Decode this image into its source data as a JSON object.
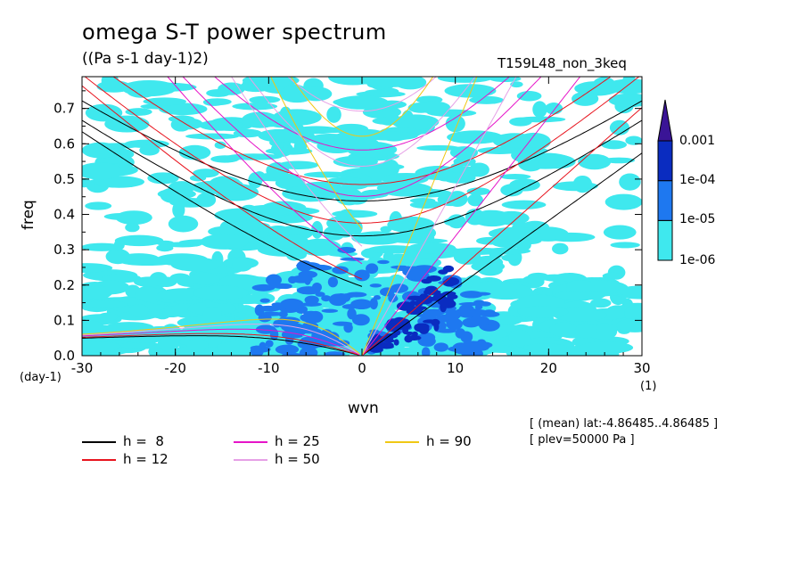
{
  "header": {
    "title": "omega S-T power spectrum",
    "subtitle": "((Pa s-1 day-1)2)",
    "run_name": "T159L48_non_3keq"
  },
  "meta": {
    "line1": "[ (mean) lat:-4.86485..4.86485 ]",
    "line2": "[ plev=50000 Pa ]"
  },
  "chart_data": {
    "type": "heatmap",
    "title": "omega S-T power spectrum",
    "subtitle": "((Pa s-1 day-1)2)",
    "xlabel": "wvn",
    "ylabel": "freq",
    "x_unit": "(1)",
    "y_unit": "(day-1)",
    "xlim": [
      -30,
      30
    ],
    "ylim": [
      0,
      0.79
    ],
    "x_ticks": [
      -30,
      -20,
      -10,
      0,
      10,
      20,
      30
    ],
    "y_ticks": [
      0.0,
      0.1,
      0.2,
      0.3,
      0.4,
      0.5,
      0.6,
      0.7
    ],
    "x_tick_labels": [
      "-30",
      "-20",
      "-10",
      "0",
      "10",
      "20",
      "30"
    ],
    "y_tick_labels": [
      "0.0",
      "0.1",
      "0.2",
      "0.3",
      "0.4",
      "0.5",
      "0.6",
      "0.7"
    ],
    "colorbar": {
      "levels": [
        "1e-06",
        "1e-05",
        "1e-04",
        "0.001"
      ],
      "colors": [
        "#3fe8ee",
        "#1e78f0",
        "#0a2cc0",
        "#3a1496"
      ]
    },
    "dispersion_curves": [
      {
        "name": "h =  8",
        "h": 8,
        "color": "#000000"
      },
      {
        "name": "h = 12",
        "h": 12,
        "color": "#e8141e"
      },
      {
        "name": "h = 25",
        "h": 25,
        "color": "#e614c8"
      },
      {
        "name": "h = 50",
        "h": 50,
        "color": "#e6a0e6"
      },
      {
        "name": "h = 90",
        "h": 90,
        "color": "#f0c814"
      }
    ]
  }
}
